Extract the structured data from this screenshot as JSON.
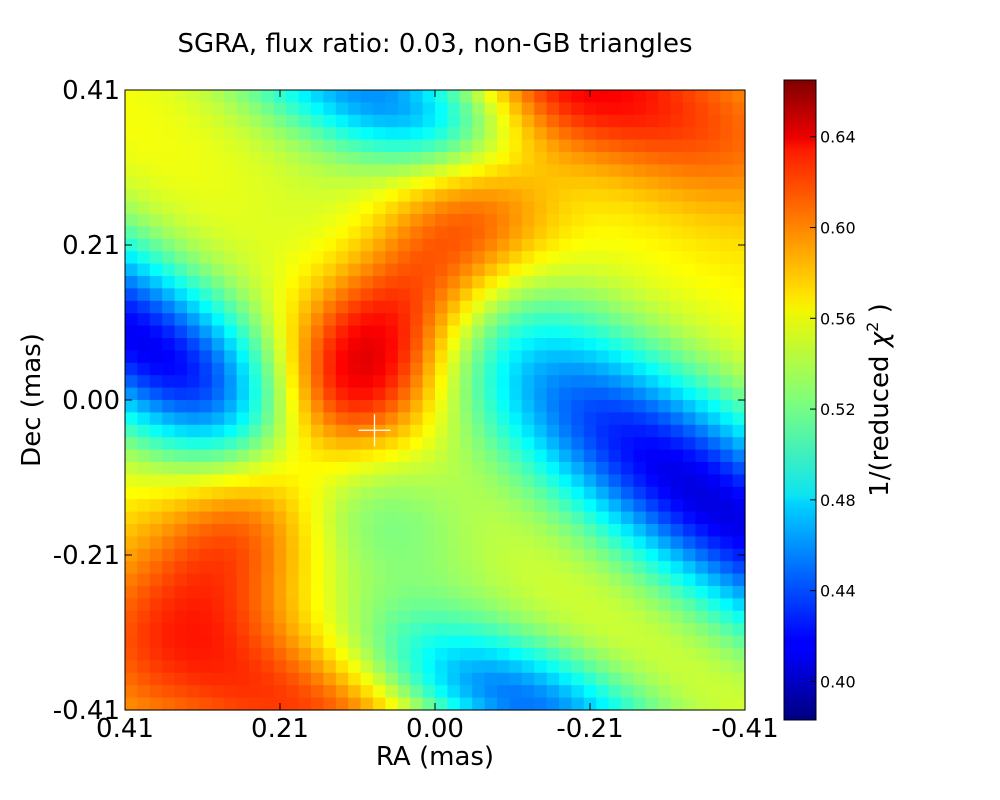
{
  "chart_data": {
    "type": "heatmap",
    "title": "SGRA, flux ratio: 0.03, non-GB triangles",
    "xlabel": "RA (mas)",
    "ylabel": "Dec (mas)",
    "x_ticks": [
      "0.41",
      "0.21",
      "0.00",
      "-0.21",
      "-0.41"
    ],
    "y_ticks": [
      "0.41",
      "0.21",
      "0.00",
      "-0.21",
      "-0.41"
    ],
    "xlim": [
      0.41,
      -0.41
    ],
    "ylim": [
      -0.41,
      0.41
    ],
    "grid_size": [
      50,
      50
    ],
    "colorbar": {
      "label_prefix": "1/(reduced ",
      "label_symbol": "χ",
      "label_sup": "2",
      "label_suffix": " )",
      "ticks": [
        "0.40",
        "0.44",
        "0.48",
        "0.52",
        "0.56",
        "0.60",
        "0.64"
      ],
      "range": [
        0.383,
        0.665
      ],
      "colormap": "jet"
    },
    "marker": {
      "symbol": "+",
      "ra": 0.08,
      "dec": -0.04,
      "color": "#ffffff"
    },
    "field_model": {
      "base": 0.56,
      "features": [
        {
          "ra": 0.1,
          "dec": 0.04,
          "amp": 0.105,
          "sig_major": 0.27,
          "sig_minor": 0.075,
          "angle_deg": -53
        },
        {
          "ra": -0.36,
          "dec": -0.13,
          "amp": -0.15,
          "sig_major": 0.3,
          "sig_minor": 0.085,
          "angle_deg": 36
        },
        {
          "ra": 0.38,
          "dec": 0.07,
          "amp": -0.145,
          "sig_major": 0.26,
          "sig_minor": 0.075,
          "angle_deg": 36
        },
        {
          "ra": 0.06,
          "dec": 0.4,
          "amp": -0.11,
          "sig_major": 0.16,
          "sig_minor": 0.06,
          "angle_deg": 20
        },
        {
          "ra": -0.1,
          "dec": -0.4,
          "amp": -0.12,
          "sig_major": 0.16,
          "sig_minor": 0.06,
          "angle_deg": 20
        },
        {
          "ra": -0.24,
          "dec": 0.4,
          "amp": 0.06,
          "sig_major": 0.2,
          "sig_minor": 0.08,
          "angle_deg": 20
        },
        {
          "ra": 0.16,
          "dec": -0.4,
          "amp": 0.06,
          "sig_major": 0.2,
          "sig_minor": 0.08,
          "angle_deg": 20
        }
      ]
    }
  }
}
